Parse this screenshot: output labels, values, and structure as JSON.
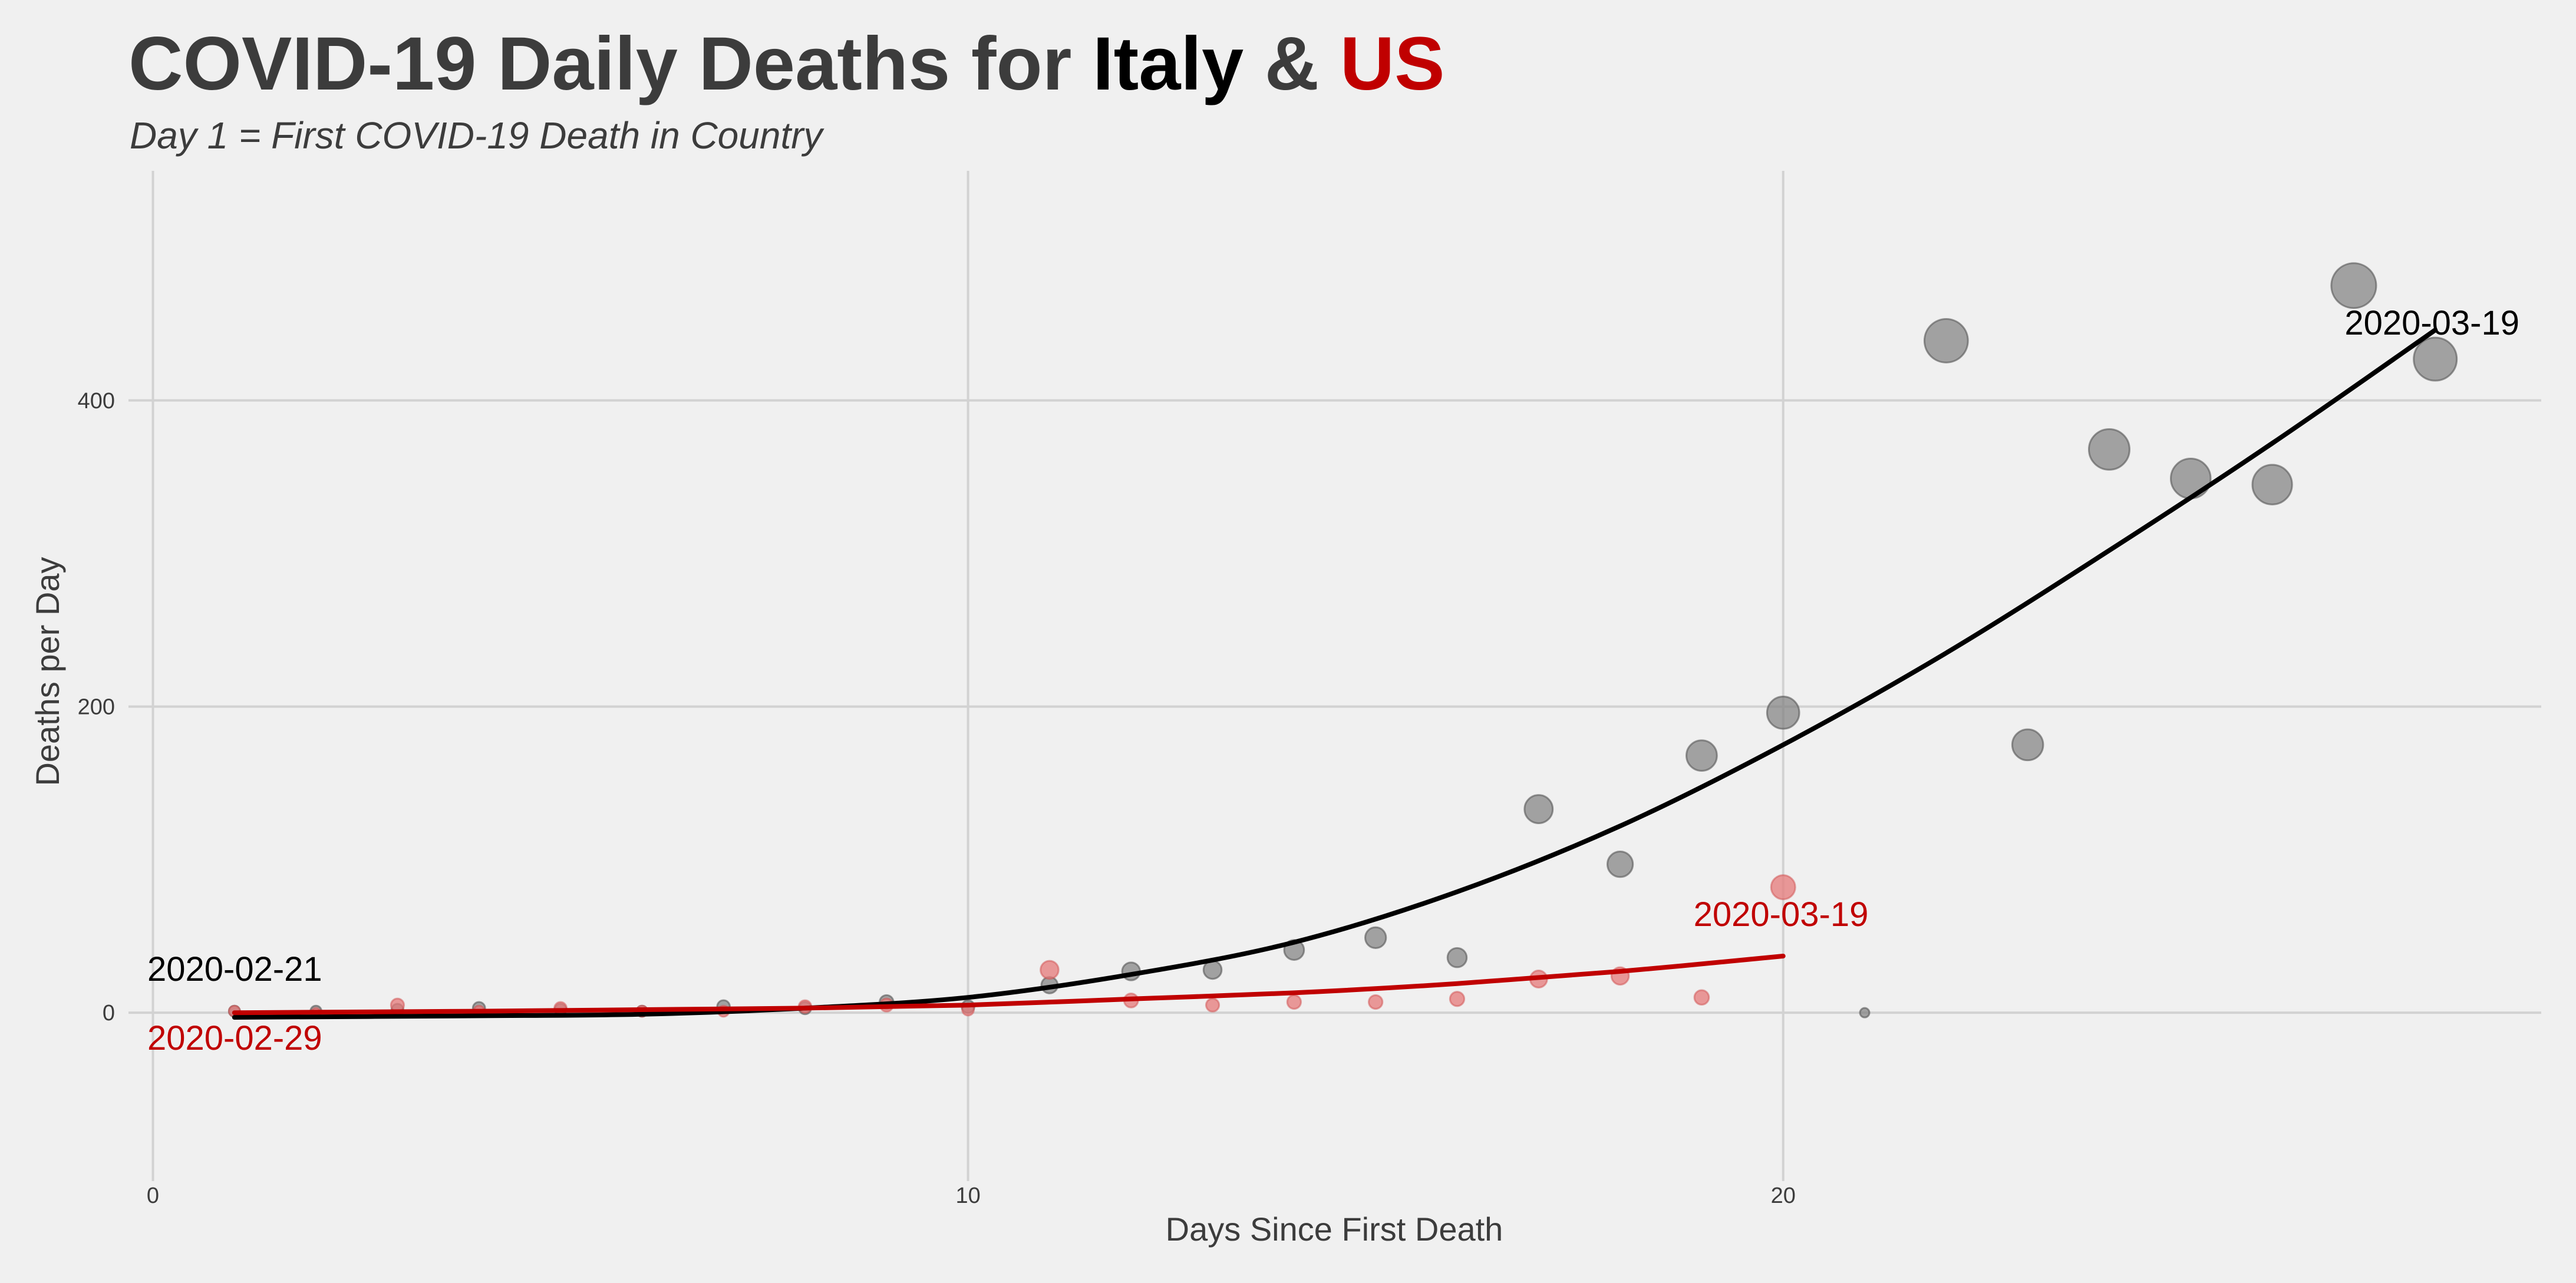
{
  "chart_data": {
    "type": "scatter",
    "title": {
      "prefix": "COVID-19 Daily Deaths for ",
      "italy": "Italy",
      "amp": " & ",
      "us": "US"
    },
    "subtitle": "Day 1 = First COVID-19 Death in Country",
    "xlabel": "Days Since First Death",
    "ylabel": "Deaths per Day",
    "xlim": [
      -0.3,
      29.3
    ],
    "ylim": [
      -110,
      550
    ],
    "x_ticks": [
      0,
      10,
      20
    ],
    "y_ticks": [
      0,
      200,
      400
    ],
    "grid": true,
    "series": [
      {
        "name": "Italy",
        "color": "#000000",
        "points": [
          {
            "x": 1,
            "y": 1
          },
          {
            "x": 2,
            "y": 1
          },
          {
            "x": 3,
            "y": 2
          },
          {
            "x": 4,
            "y": 3
          },
          {
            "x": 5,
            "y": 2
          },
          {
            "x": 6,
            "y": 1
          },
          {
            "x": 7,
            "y": 4
          },
          {
            "x": 8,
            "y": 3
          },
          {
            "x": 9,
            "y": 7
          },
          {
            "x": 10,
            "y": 4
          },
          {
            "x": 11,
            "y": 18
          },
          {
            "x": 12,
            "y": 27
          },
          {
            "x": 13,
            "y": 28
          },
          {
            "x": 14,
            "y": 41
          },
          {
            "x": 15,
            "y": 49
          },
          {
            "x": 16,
            "y": 36
          },
          {
            "x": 17,
            "y": 133
          },
          {
            "x": 18,
            "y": 97
          },
          {
            "x": 19,
            "y": 168
          },
          {
            "x": 20,
            "y": 196
          },
          {
            "x": 21,
            "y": 0
          },
          {
            "x": 22,
            "y": 439
          },
          {
            "x": 23,
            "y": 175
          },
          {
            "x": 24,
            "y": 368
          },
          {
            "x": 25,
            "y": 349
          },
          {
            "x": 26,
            "y": 345
          },
          {
            "x": 27,
            "y": 475
          },
          {
            "x": 28,
            "y": 427
          }
        ],
        "trend": [
          {
            "x": 1,
            "y": -3
          },
          {
            "x": 4,
            "y": -2
          },
          {
            "x": 6,
            "y": -1
          },
          {
            "x": 8,
            "y": 3
          },
          {
            "x": 10,
            "y": 10
          },
          {
            "x": 12,
            "y": 25
          },
          {
            "x": 14,
            "y": 46
          },
          {
            "x": 16,
            "y": 79
          },
          {
            "x": 18,
            "y": 122
          },
          {
            "x": 20,
            "y": 175
          },
          {
            "x": 22,
            "y": 235
          },
          {
            "x": 24,
            "y": 302
          },
          {
            "x": 26,
            "y": 372
          },
          {
            "x": 28,
            "y": 446
          }
        ],
        "start_label": "2020-02-21",
        "end_label": "2020-03-19"
      },
      {
        "name": "US",
        "color": "#c00000",
        "points": [
          {
            "x": 1,
            "y": 1
          },
          {
            "x": 2,
            "y": 0
          },
          {
            "x": 3,
            "y": 5
          },
          {
            "x": 4,
            "y": 1
          },
          {
            "x": 5,
            "y": 3
          },
          {
            "x": 6,
            "y": 1
          },
          {
            "x": 7,
            "y": 1
          },
          {
            "x": 8,
            "y": 4
          },
          {
            "x": 9,
            "y": 5
          },
          {
            "x": 10,
            "y": 2
          },
          {
            "x": 11,
            "y": 28
          },
          {
            "x": 12,
            "y": 8
          },
          {
            "x": 13,
            "y": 5
          },
          {
            "x": 14,
            "y": 7
          },
          {
            "x": 15,
            "y": 7
          },
          {
            "x": 16,
            "y": 9
          },
          {
            "x": 17,
            "y": 22
          },
          {
            "x": 18,
            "y": 24
          },
          {
            "x": 19,
            "y": 10
          },
          {
            "x": 20,
            "y": 82
          }
        ],
        "trend": [
          {
            "x": 1,
            "y": 0
          },
          {
            "x": 4,
            "y": 1
          },
          {
            "x": 6,
            "y": 2
          },
          {
            "x": 8,
            "y": 3
          },
          {
            "x": 10,
            "y": 5
          },
          {
            "x": 12,
            "y": 9
          },
          {
            "x": 14,
            "y": 13
          },
          {
            "x": 16,
            "y": 19
          },
          {
            "x": 18,
            "y": 27
          },
          {
            "x": 20,
            "y": 37
          }
        ],
        "start_label": "2020-02-29",
        "end_label": "2020-03-19"
      }
    ]
  },
  "colors": {
    "background": "#f0f0f0",
    "grid": "#d2d2d2",
    "text": "#3c3c3c",
    "italy": "#000000",
    "us": "#c00000",
    "italy_point": "#7f7f7f",
    "us_point": "#e57a7a"
  }
}
